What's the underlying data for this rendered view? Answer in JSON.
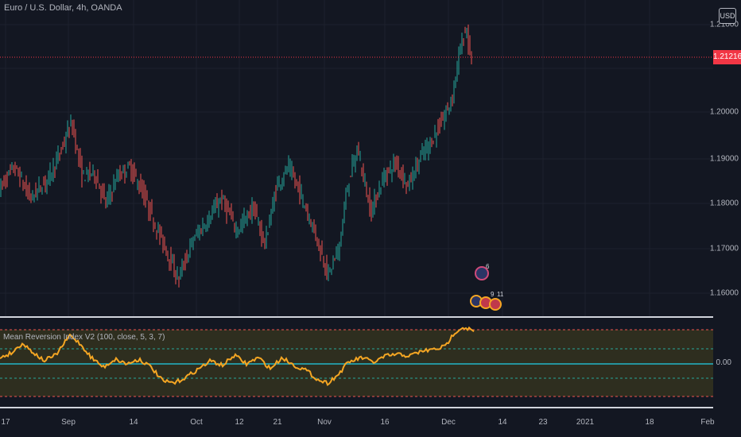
{
  "chart": {
    "symbol_title": "Euro / U.S. Dollar, 4h, OANDA",
    "currency_button": "USD",
    "last_price_label": "1.21216",
    "price_ticks": [
      "1.21000",
      "1.20000",
      "1.19000",
      "1.18000",
      "1.17000",
      "1.16000"
    ],
    "price_tick_values": [
      1.21,
      1.2,
      1.19,
      1.18,
      1.17,
      1.16
    ],
    "time_ticks": [
      "17",
      "Sep",
      "14",
      "Oct",
      "12",
      "21",
      "Nov",
      "16",
      "Dec",
      "14",
      "23",
      "2021",
      "18",
      "Feb"
    ],
    "indicator_title": "Mean Reversion Index V2 (100, close, 5, 3, 7)",
    "indicator_zero_label": "0.00",
    "event_labels": [
      "6",
      "9",
      "11"
    ],
    "colors": {
      "background": "#131722",
      "up": "#26a69a",
      "down": "#ef5350",
      "price_line": "#f23645",
      "indicator_line": "#f5a623",
      "zero_line": "#22b5c8",
      "band_fill": "#2e2e1f"
    }
  }
}
